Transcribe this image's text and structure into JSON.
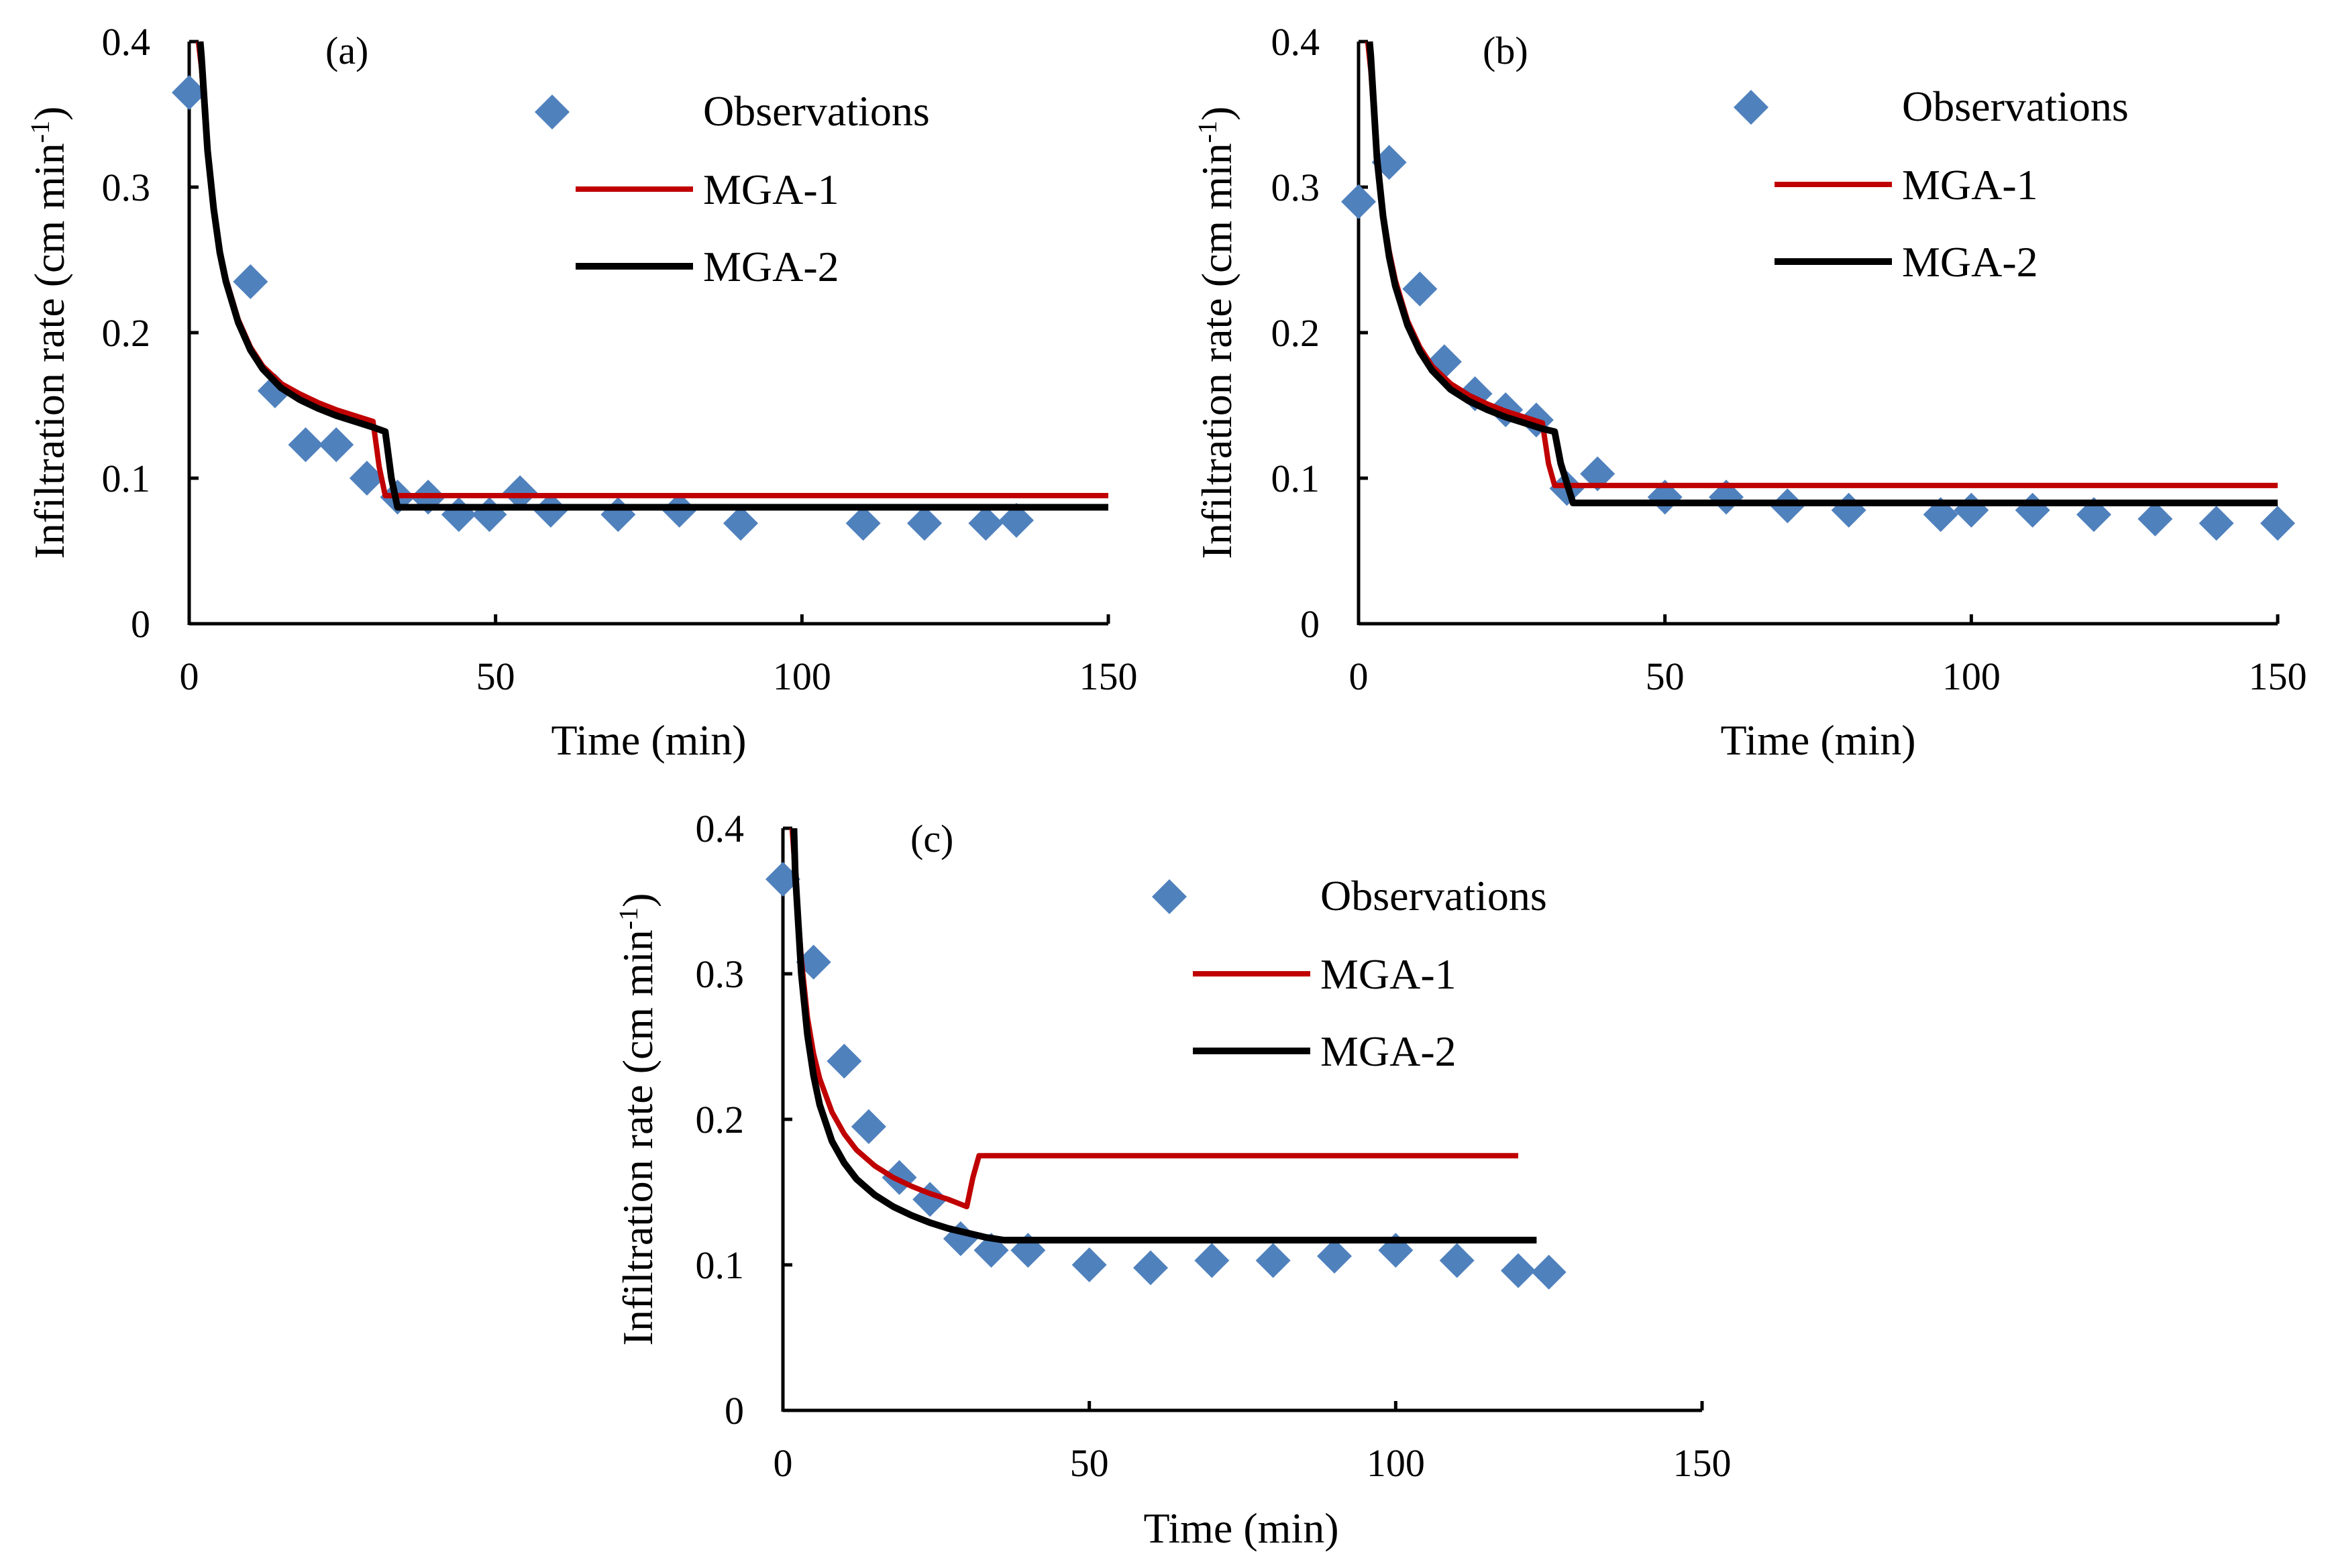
{
  "figure": {
    "description_text": "",
    "colors": {
      "observations": "#4f81bd",
      "mga1": "#c00000",
      "mga2": "#000000",
      "axis": "#000000"
    }
  },
  "legend": {
    "observations": "Observations",
    "mga1": "MGA-1",
    "mga2": "MGA-2"
  },
  "chart_data": [
    {
      "type": "scatter+line",
      "panel_label": "(a)",
      "xlabel": "Time (min)",
      "ylabel": "Infiltration rate (cm min",
      "ylabel_sup": "-1",
      "ylabel_close": ")",
      "xlim": [
        0,
        150
      ],
      "ylim": [
        0,
        0.4
      ],
      "xticks": [
        0,
        50,
        100,
        150
      ],
      "yticks": [
        0,
        0.1,
        0.2,
        0.3,
        0.4
      ],
      "xtick_labels": [
        "0",
        "50",
        "100",
        "150"
      ],
      "ytick_labels": [
        "0",
        "0.1",
        "0.2",
        "0.3",
        "0.4"
      ],
      "series": [
        {
          "name": "Observations",
          "kind": "scatter",
          "x": [
            0,
            10,
            14,
            19,
            24,
            29,
            34,
            39,
            44,
            49,
            54,
            59,
            70,
            80,
            90,
            110,
            120,
            130,
            135
          ],
          "y": [
            0.365,
            0.235,
            0.16,
            0.123,
            0.123,
            0.1,
            0.087,
            0.087,
            0.075,
            0.075,
            0.09,
            0.078,
            0.075,
            0.078,
            0.069,
            0.069,
            0.069,
            0.069,
            0.071
          ]
        },
        {
          "name": "MGA-1",
          "kind": "line",
          "x": [
            1.5,
            2,
            3,
            4,
            5,
            6,
            8,
            10,
            12,
            15,
            18,
            21,
            24,
            27,
            30,
            31,
            32,
            150
          ],
          "y": [
            0.4,
            0.382,
            0.325,
            0.285,
            0.257,
            0.237,
            0.209,
            0.19,
            0.177,
            0.165,
            0.158,
            0.152,
            0.147,
            0.143,
            0.139,
            0.108,
            0.088,
            0.088
          ]
        },
        {
          "name": "MGA-2",
          "kind": "line",
          "x": [
            1.8,
            2,
            3,
            4,
            5,
            6,
            8,
            10,
            12,
            15,
            18,
            21,
            24,
            27,
            30,
            32,
            33,
            34,
            150
          ],
          "y": [
            0.4,
            0.39,
            0.325,
            0.285,
            0.255,
            0.235,
            0.207,
            0.188,
            0.175,
            0.162,
            0.154,
            0.148,
            0.143,
            0.139,
            0.135,
            0.132,
            0.1,
            0.08,
            0.08
          ]
        }
      ]
    },
    {
      "type": "scatter+line",
      "panel_label": "(b)",
      "xlabel": "Time (min)",
      "ylabel": "Infiltration rate (cm min",
      "ylabel_sup": "-1",
      "ylabel_close": ")",
      "xlim": [
        0,
        150
      ],
      "ylim": [
        0,
        0.4
      ],
      "xticks": [
        0,
        50,
        100,
        150
      ],
      "yticks": [
        0,
        0.1,
        0.2,
        0.3,
        0.4
      ],
      "xtick_labels": [
        "0",
        "50",
        "100",
        "150"
      ],
      "ytick_labels": [
        "0",
        "0.1",
        "0.2",
        "0.3",
        "0.4"
      ],
      "series": [
        {
          "name": "Observations",
          "kind": "scatter",
          "x": [
            0,
            5,
            10,
            14,
            19,
            24,
            29,
            34,
            39,
            50,
            60,
            70,
            80,
            95,
            100,
            110,
            120,
            130,
            140,
            150
          ],
          "y": [
            0.29,
            0.317,
            0.23,
            0.18,
            0.158,
            0.147,
            0.14,
            0.093,
            0.103,
            0.087,
            0.087,
            0.081,
            0.078,
            0.075,
            0.078,
            0.078,
            0.075,
            0.072,
            0.069,
            0.069
          ]
        },
        {
          "name": "MGA-1",
          "kind": "line",
          "x": [
            1.5,
            2,
            3,
            4,
            5,
            6,
            8,
            10,
            12,
            15,
            18,
            21,
            24,
            27,
            30,
            31,
            32,
            150
          ],
          "y": [
            0.4,
            0.38,
            0.32,
            0.282,
            0.256,
            0.236,
            0.208,
            0.19,
            0.177,
            0.165,
            0.157,
            0.151,
            0.146,
            0.142,
            0.138,
            0.11,
            0.095,
            0.095
          ]
        },
        {
          "name": "MGA-2",
          "kind": "line",
          "x": [
            1.8,
            2,
            3,
            4,
            5,
            6,
            8,
            10,
            12,
            15,
            18,
            21,
            24,
            27,
            30,
            32,
            33,
            35,
            150
          ],
          "y": [
            0.4,
            0.39,
            0.32,
            0.28,
            0.252,
            0.232,
            0.205,
            0.187,
            0.174,
            0.161,
            0.153,
            0.147,
            0.142,
            0.138,
            0.134,
            0.132,
            0.11,
            0.083,
            0.083
          ]
        }
      ]
    },
    {
      "type": "scatter+line",
      "panel_label": "(c)",
      "xlabel": "Time (min)",
      "ylabel": "Infiltration rate (cm min",
      "ylabel_sup": "-1",
      "ylabel_close": ")",
      "xlim": [
        0,
        150
      ],
      "ylim": [
        0,
        0.4
      ],
      "xticks": [
        0,
        50,
        100,
        150
      ],
      "yticks": [
        0,
        0.1,
        0.2,
        0.3,
        0.4
      ],
      "xtick_labels": [
        "0",
        "50",
        "100",
        "150"
      ],
      "ytick_labels": [
        "0",
        "0.1",
        "0.2",
        "0.3",
        "0.4"
      ],
      "series": [
        {
          "name": "Observations",
          "kind": "scatter",
          "x": [
            0,
            5,
            10,
            14,
            19,
            24,
            29,
            34,
            40,
            50,
            60,
            70,
            80,
            90,
            100,
            110,
            120,
            125
          ],
          "y": [
            0.365,
            0.308,
            0.24,
            0.195,
            0.16,
            0.145,
            0.118,
            0.11,
            0.11,
            0.1,
            0.098,
            0.103,
            0.103,
            0.106,
            0.11,
            0.103,
            0.096,
            0.095
          ]
        },
        {
          "name": "MGA-1",
          "kind": "line",
          "x": [
            1.5,
            2,
            3,
            4,
            5,
            6,
            8,
            10,
            12,
            15,
            18,
            21,
            24,
            27,
            30,
            31,
            32,
            120
          ],
          "y": [
            0.4,
            0.37,
            0.31,
            0.27,
            0.245,
            0.228,
            0.205,
            0.19,
            0.179,
            0.168,
            0.16,
            0.154,
            0.149,
            0.145,
            0.14,
            0.16,
            0.175,
            0.175
          ]
        },
        {
          "name": "MGA-2",
          "kind": "line",
          "x": [
            1.8,
            2,
            3,
            4,
            5,
            6,
            8,
            10,
            12,
            15,
            18,
            21,
            24,
            27,
            30,
            33,
            36,
            123
          ],
          "y": [
            0.4,
            0.37,
            0.3,
            0.258,
            0.23,
            0.21,
            0.185,
            0.17,
            0.159,
            0.148,
            0.14,
            0.134,
            0.129,
            0.125,
            0.122,
            0.119,
            0.117,
            0.117
          ]
        }
      ]
    }
  ]
}
